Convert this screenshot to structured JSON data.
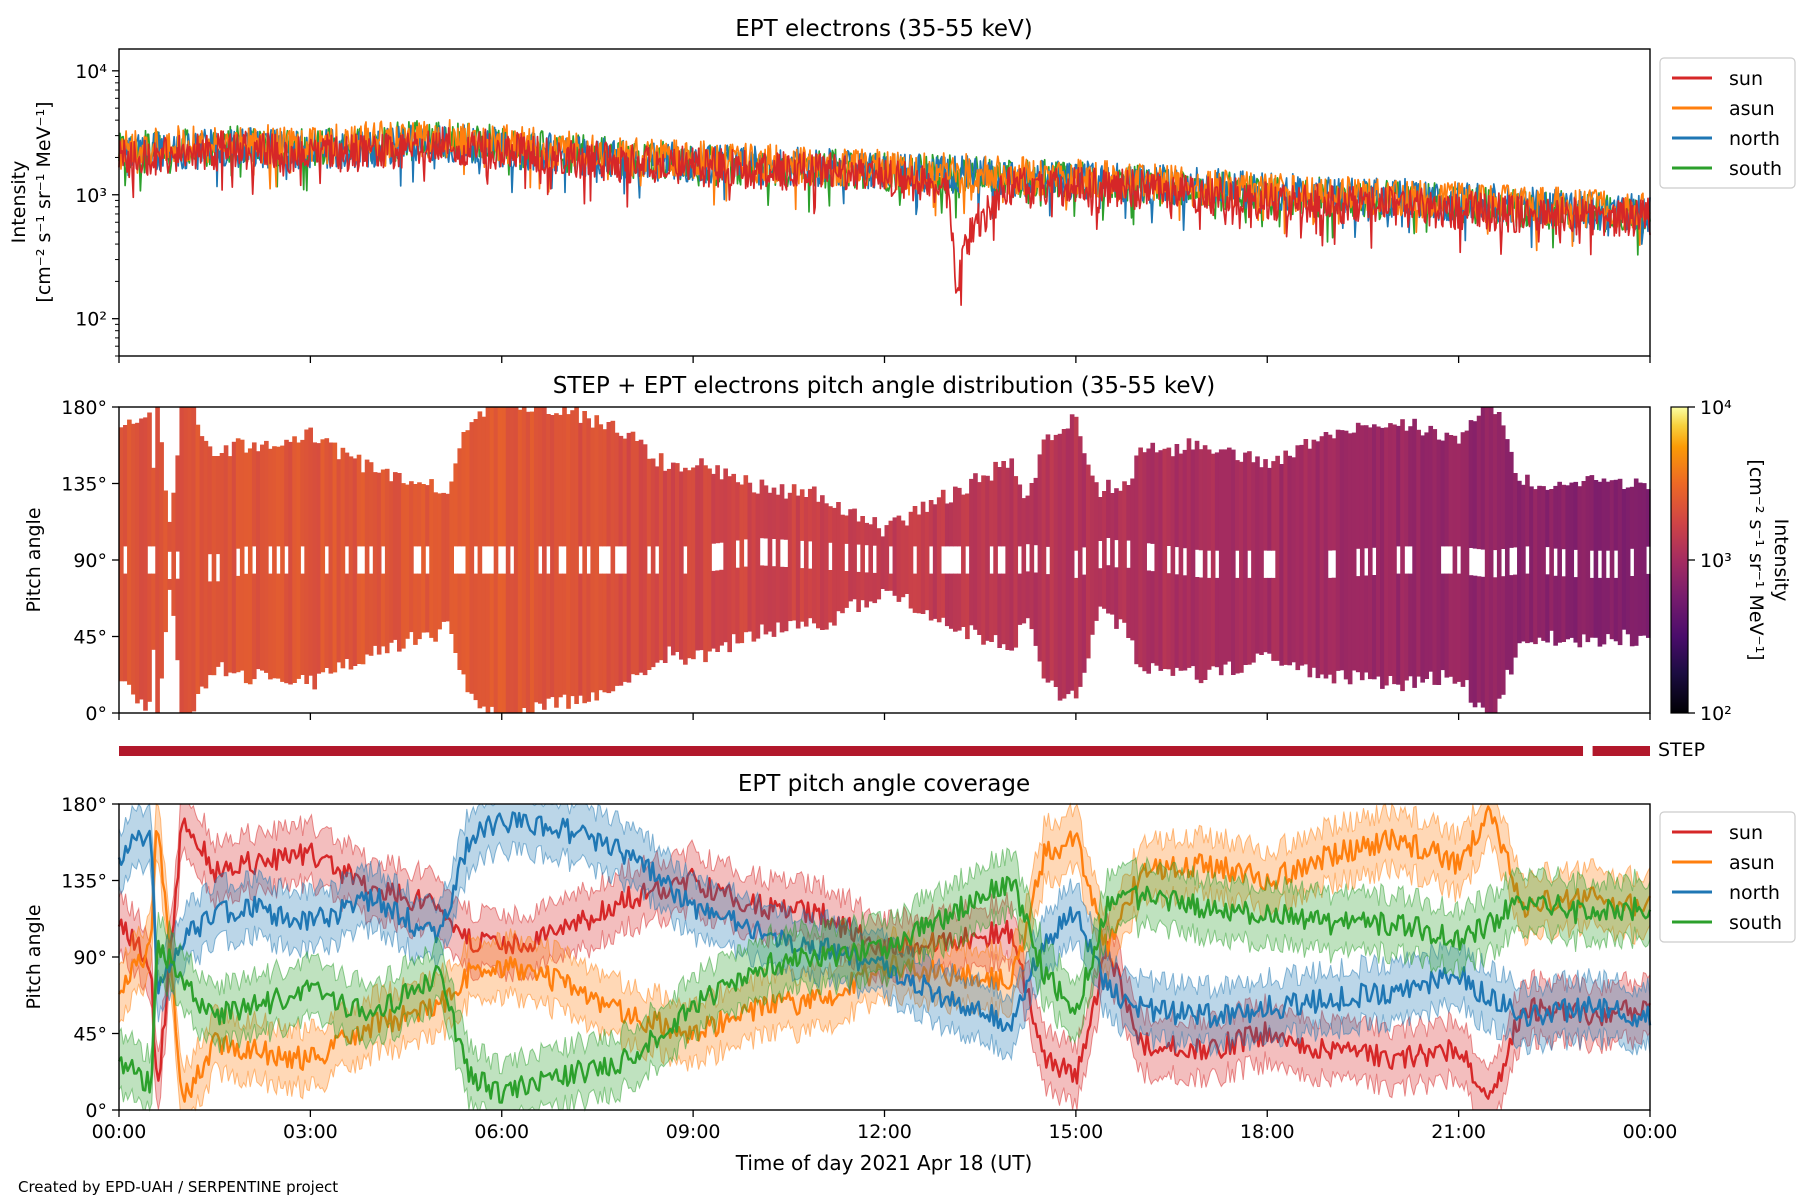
{
  "footer": "Created by EPD-UAH / SERPENTINE project",
  "colors": {
    "sun": "#d62728",
    "asun": "#ff7f0e",
    "north": "#1f77b4",
    "south": "#2ca02c",
    "step_bar": "#b2182b"
  },
  "chart_data": [
    {
      "type": "line",
      "title": "EPT electrons (35-55 keV)",
      "ylabel": [
        "Intensity",
        "[cm⁻² s⁻¹ sr⁻¹ MeV⁻¹]"
      ],
      "yscale": "log",
      "ylim": [
        50,
        15000
      ],
      "yticks": [
        {
          "value": 100,
          "label": "10²"
        },
        {
          "value": 1000,
          "label": "10³"
        },
        {
          "value": 10000,
          "label": "10⁴"
        }
      ],
      "xlim_hours": [
        0,
        24
      ],
      "legend": {
        "placement": "outside-right",
        "entries": [
          "sun",
          "asun",
          "north",
          "south"
        ]
      },
      "series": [
        {
          "name": "sun",
          "x_hours": [
            0,
            1,
            2,
            3,
            4,
            5,
            6,
            7,
            8,
            9,
            10,
            11,
            12,
            13,
            13.1,
            14,
            15,
            16,
            17,
            18,
            19,
            20,
            21,
            22,
            23,
            24
          ],
          "values": [
            1900,
            2200,
            2300,
            2100,
            2200,
            2500,
            2300,
            2000,
            1800,
            1700,
            1600,
            1550,
            1400,
            1100,
            150,
            1250,
            1150,
            1100,
            1000,
            900,
            850,
            800,
            750,
            700,
            680,
            650
          ]
        },
        {
          "name": "asun",
          "x_hours": [
            0,
            1,
            2,
            3,
            4,
            5,
            6,
            7,
            8,
            9,
            10,
            11,
            12,
            13,
            14,
            15,
            16,
            17,
            18,
            19,
            20,
            21,
            22,
            23,
            24
          ],
          "values": [
            2300,
            2500,
            2600,
            2500,
            2700,
            2900,
            2600,
            2300,
            2000,
            1900,
            1800,
            1700,
            1600,
            1500,
            1450,
            1350,
            1250,
            1150,
            1050,
            1000,
            950,
            880,
            820,
            780,
            720
          ]
        },
        {
          "name": "north",
          "x_hours": [
            0,
            1,
            2,
            3,
            4,
            5,
            6,
            7,
            8,
            9,
            10,
            11,
            12,
            13,
            14,
            15,
            16,
            17,
            18,
            19,
            20,
            21,
            22,
            23,
            24
          ],
          "values": [
            2100,
            2300,
            2400,
            2300,
            2400,
            2700,
            2400,
            2100,
            1900,
            1800,
            1700,
            1650,
            1550,
            1450,
            1400,
            1300,
            1250,
            1150,
            1050,
            1000,
            950,
            880,
            820,
            760,
            700
          ]
        },
        {
          "name": "south",
          "x_hours": [
            0,
            1,
            2,
            3,
            4,
            5,
            6,
            7,
            8,
            9,
            10,
            11,
            12,
            13,
            14,
            15,
            16,
            17,
            18,
            19,
            20,
            21,
            22,
            23,
            24
          ],
          "values": [
            2200,
            2400,
            2500,
            2400,
            2600,
            2800,
            2500,
            2200,
            1950,
            1850,
            1700,
            1650,
            1500,
            1450,
            1350,
            1300,
            1200,
            1100,
            1000,
            950,
            900,
            840,
            780,
            730,
            680
          ]
        }
      ]
    },
    {
      "type": "heatmap",
      "title": "STEP + EPT electrons pitch angle distribution (35-55 keV)",
      "ylabel": "Pitch angle",
      "ylim": [
        0,
        180
      ],
      "yticks": [
        "0°",
        "45°",
        "90°",
        "135°",
        "180°"
      ],
      "xlim_hours": [
        0,
        24
      ],
      "colorbar": {
        "label": [
          "Intensity",
          "[cm⁻² s⁻¹ sr⁻¹ MeV⁻¹]"
        ],
        "scale": "log",
        "range": [
          100,
          10000
        ],
        "ticks": [
          {
            "value": 100,
            "label": "10²"
          },
          {
            "value": 1000,
            "label": "10³"
          },
          {
            "value": 10000,
            "label": "10⁴"
          }
        ]
      },
      "intensity_trend": {
        "x_hours": [
          0,
          6,
          9,
          12,
          15,
          18,
          21,
          24
        ],
        "values": [
          2200,
          2400,
          1800,
          1500,
          1200,
          1000,
          800,
          650
        ]
      }
    },
    {
      "type": "bar",
      "label": "STEP",
      "segments_hours": [
        [
          0,
          22.95
        ],
        [
          23.1,
          24
        ]
      ]
    },
    {
      "type": "line",
      "title": "EPT pitch angle coverage",
      "xlabel": "Time of day 2021 Apr 18 (UT)",
      "ylabel": "Pitch angle",
      "ylim": [
        0,
        180
      ],
      "yticks": [
        "0°",
        "45°",
        "90°",
        "135°",
        "180°"
      ],
      "xlim_hours": [
        0,
        24
      ],
      "xticks": [
        "00:00",
        "03:00",
        "06:00",
        "09:00",
        "12:00",
        "15:00",
        "18:00",
        "21:00",
        "00:00"
      ],
      "legend": {
        "placement": "outside-right",
        "entries": [
          "sun",
          "asun",
          "north",
          "south"
        ]
      },
      "series": [
        {
          "name": "sun",
          "x_hours": [
            0,
            0.5,
            0.6,
            1,
            1.5,
            2,
            3,
            4,
            5,
            5.5,
            6,
            7,
            8,
            9,
            10,
            11,
            12,
            13,
            14,
            14.5,
            15,
            15.5,
            16,
            17,
            18,
            19,
            20,
            21,
            21.5,
            22,
            23,
            24
          ],
          "values": [
            110,
            85,
            5,
            175,
            140,
            145,
            150,
            130,
            120,
            100,
            95,
            105,
            125,
            135,
            120,
            115,
            95,
            100,
            105,
            30,
            20,
            95,
            40,
            35,
            45,
            35,
            30,
            35,
            5,
            60,
            55,
            60
          ]
        },
        {
          "name": "asun",
          "x_hours": [
            0,
            0.5,
            0.6,
            1,
            1.5,
            2,
            3,
            4,
            5,
            5.5,
            6,
            7,
            8,
            9,
            10,
            11,
            12,
            13,
            14,
            14.5,
            15,
            15.5,
            16,
            17,
            18,
            19,
            20,
            21,
            21.5,
            22,
            23,
            24
          ],
          "values": [
            70,
            95,
            175,
            5,
            40,
            35,
            30,
            50,
            60,
            80,
            85,
            75,
            55,
            45,
            60,
            65,
            85,
            80,
            75,
            150,
            160,
            95,
            140,
            145,
            135,
            150,
            160,
            145,
            175,
            120,
            125,
            120
          ]
        },
        {
          "name": "north",
          "x_hours": [
            0,
            0.5,
            0.6,
            1,
            1.5,
            2,
            3,
            4,
            5,
            5.5,
            6,
            7,
            8,
            9,
            10,
            11,
            12,
            13,
            14,
            14.5,
            15,
            15.5,
            16,
            17,
            18,
            19,
            20,
            21,
            21.5,
            22,
            23,
            24
          ],
          "values": [
            150,
            165,
            70,
            100,
            115,
            120,
            110,
            125,
            100,
            160,
            170,
            165,
            150,
            120,
            105,
            95,
            85,
            65,
            50,
            100,
            115,
            70,
            60,
            55,
            60,
            65,
            70,
            80,
            65,
            55,
            60,
            55
          ]
        },
        {
          "name": "south",
          "x_hours": [
            0,
            0.5,
            0.6,
            1,
            1.5,
            2,
            3,
            4,
            5,
            5.5,
            6,
            7,
            8,
            9,
            10,
            11,
            12,
            13,
            14,
            14.5,
            15,
            15.5,
            16,
            17,
            18,
            19,
            20,
            21,
            21.5,
            22,
            23,
            24
          ],
          "values": [
            30,
            15,
            100,
            75,
            55,
            60,
            70,
            55,
            80,
            20,
            10,
            20,
            30,
            60,
            85,
            90,
            95,
            115,
            135,
            80,
            60,
            120,
            125,
            120,
            115,
            110,
            110,
            100,
            110,
            125,
            115,
            120
          ]
        }
      ]
    }
  ]
}
